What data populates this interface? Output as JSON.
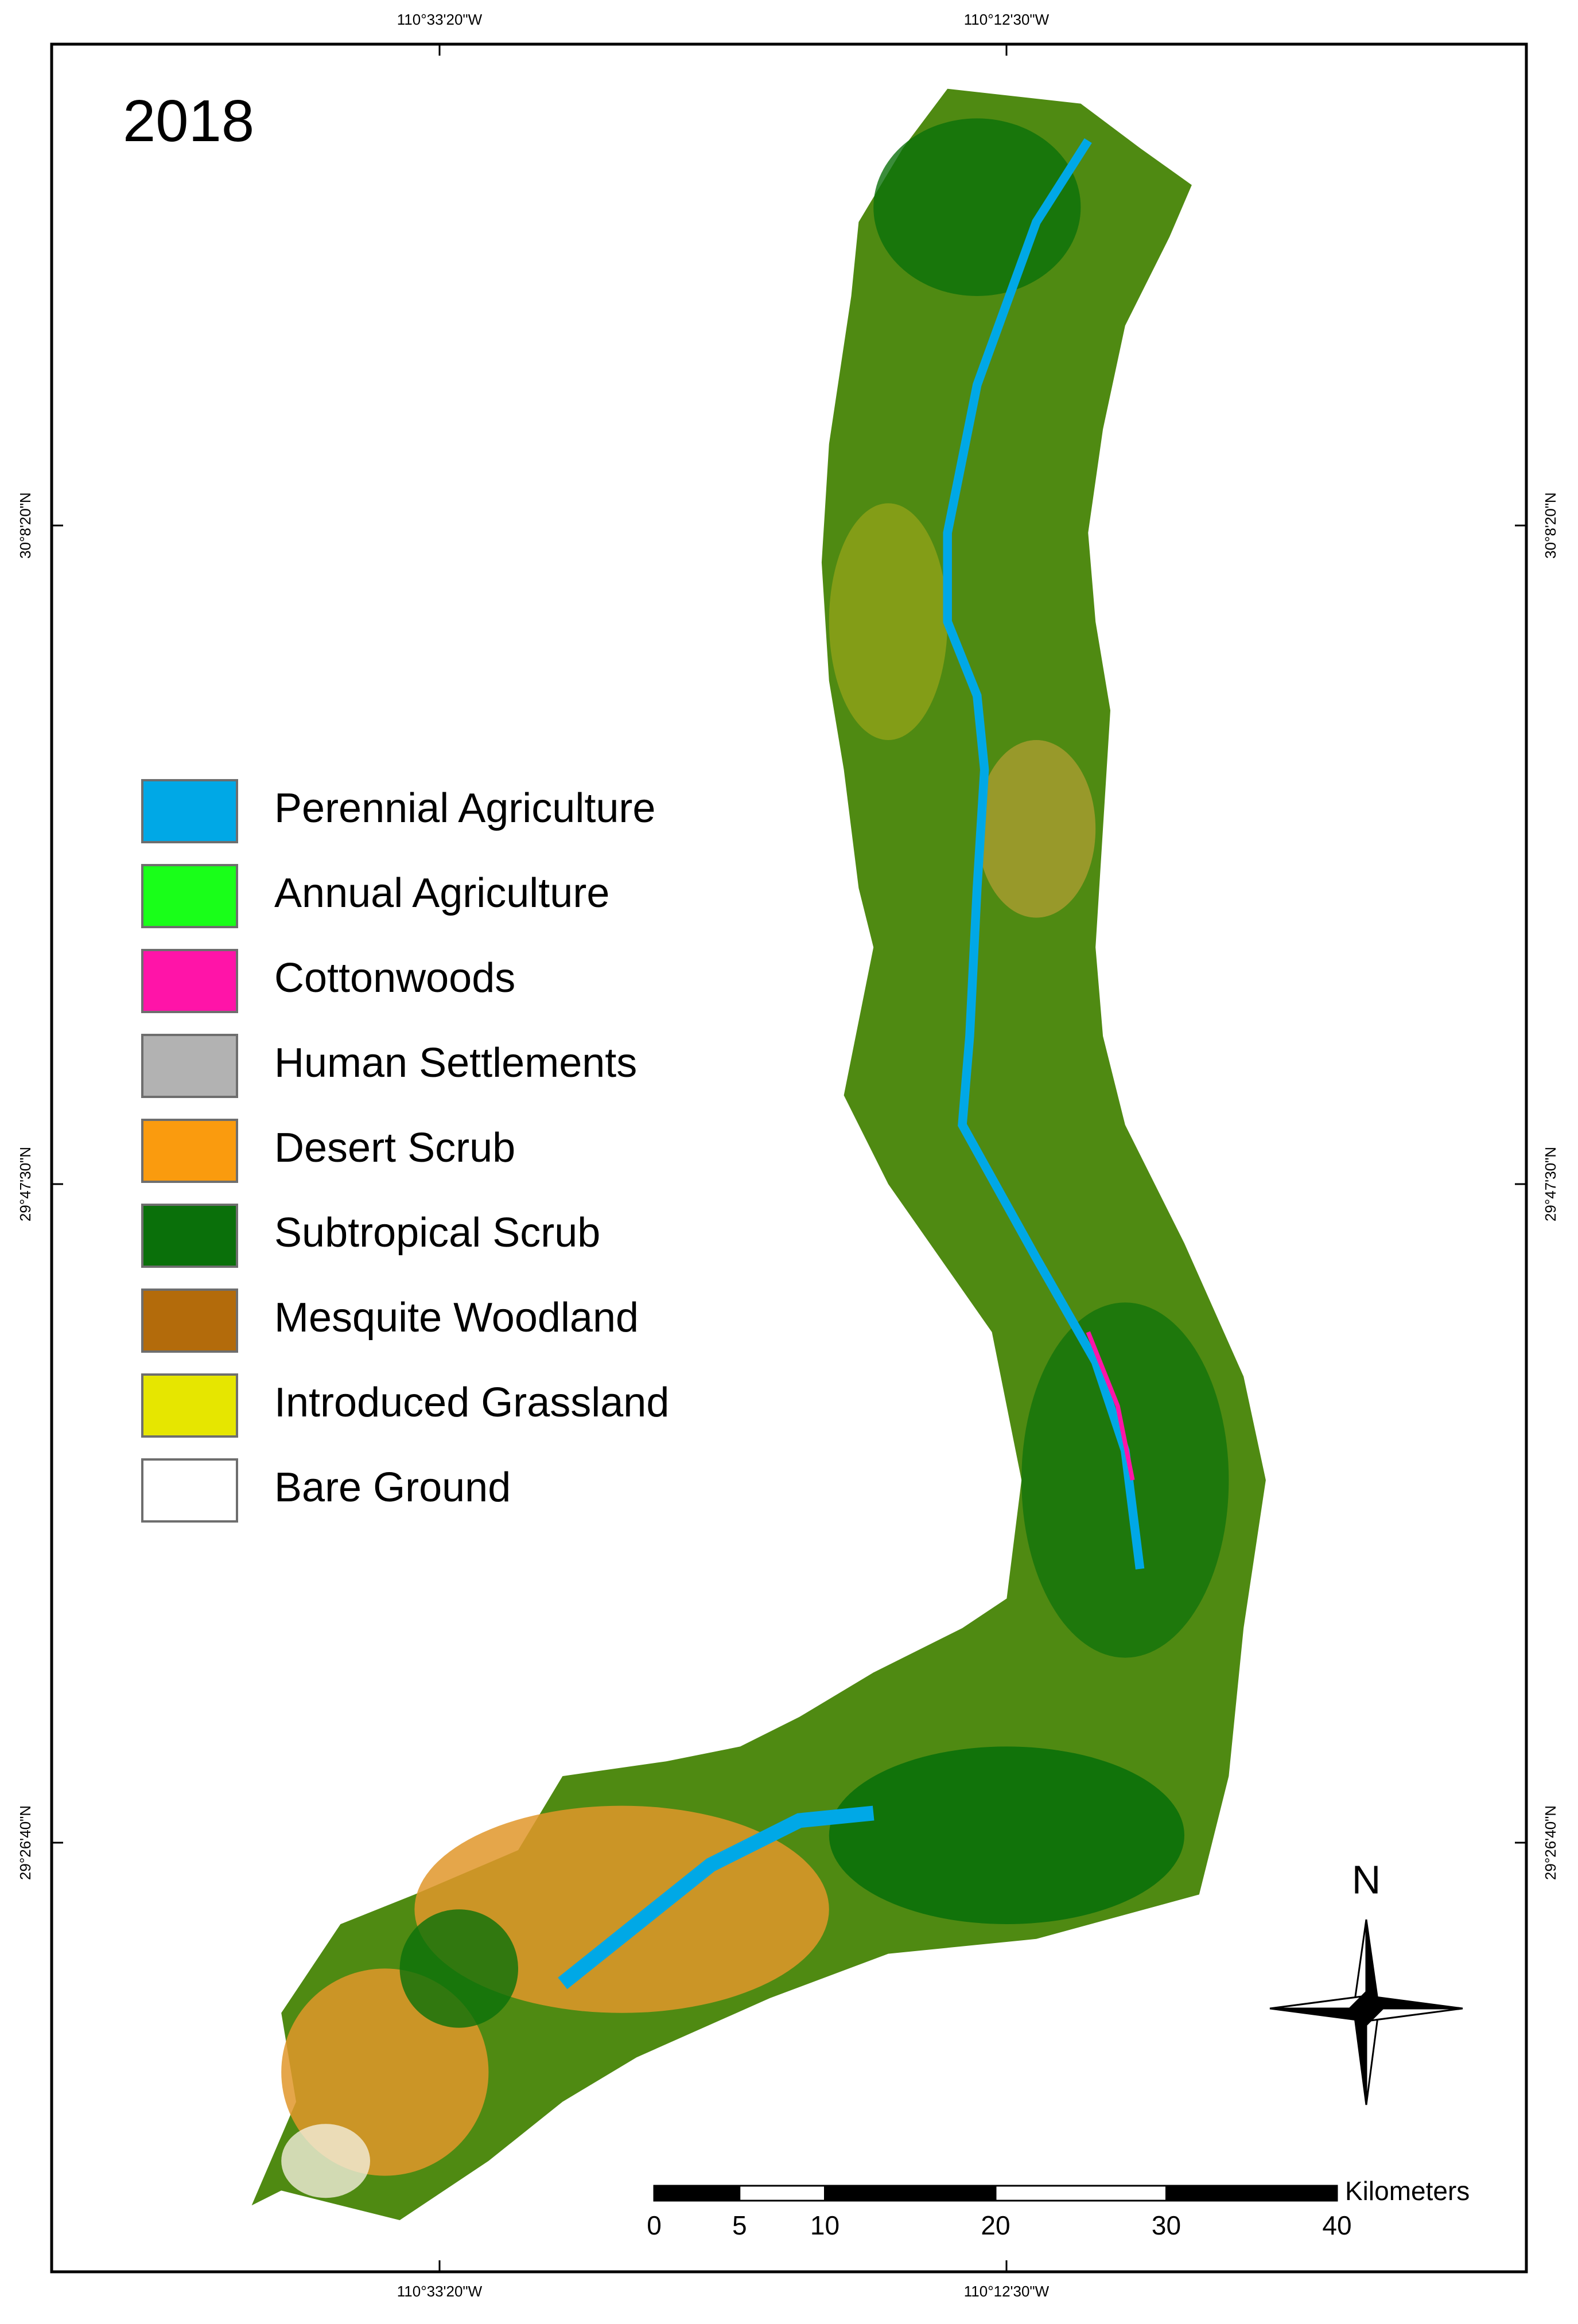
{
  "title": "2018",
  "graticule": {
    "longitudes": [
      "110°33'20\"W",
      "110°12'30\"W"
    ],
    "latitudes": [
      "30°8'20\"N",
      "29°47'30\"N",
      "29°26'40\"N"
    ]
  },
  "legend": [
    {
      "label": "Perennial Agriculture",
      "color": "#00a8e6"
    },
    {
      "label": "Annual Agriculture",
      "color": "#19ff19"
    },
    {
      "label": "Cottonwoods",
      "color": "#ff14a8"
    },
    {
      "label": "Human Settlements",
      "color": "#b2b2b2"
    },
    {
      "label": "Desert Scrub",
      "color": "#fa9b0e"
    },
    {
      "label": "Subtropical Scrub",
      "color": "#0a700a"
    },
    {
      "label": "Mesquite Woodland",
      "color": "#b36b0b"
    },
    {
      "label": "Introduced Grassland",
      "color": "#e6e600"
    },
    {
      "label": "Bare Ground",
      "color": "#ffffff"
    }
  ],
  "north_arrow": "N",
  "scale_bar": {
    "ticks": [
      0,
      5,
      10,
      20,
      30,
      40
    ],
    "unit": "Kilometers"
  }
}
